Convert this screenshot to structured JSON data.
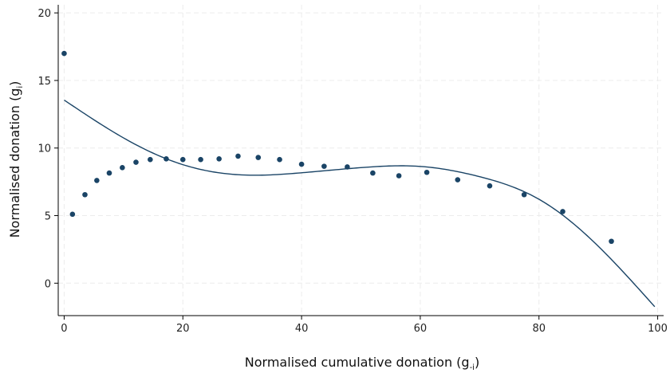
{
  "chart_data": {
    "type": "scatter",
    "xlabel": "Normalised cumulative donation (g",
    "xlabel_sub": "-i",
    "ylabel": "Normalised donation (g",
    "ylabel_sub": "i",
    "label_close": ")",
    "xlim": [
      -1,
      101
    ],
    "ylim": [
      -2.4,
      20.6
    ],
    "xticks": [
      0,
      20,
      40,
      60,
      80,
      100
    ],
    "yticks": [
      0,
      5,
      10,
      15,
      20
    ],
    "grid": true,
    "colors": {
      "series": "#1a4466",
      "grid": "#ececec"
    },
    "series": [
      {
        "type": "scatter",
        "x": [
          0,
          1.4,
          3.5,
          5.5,
          7.6,
          9.8,
          12.1,
          14.5,
          17.2,
          20.0,
          23.0,
          26.1,
          29.3,
          32.7,
          36.3,
          40.0,
          43.8,
          47.7,
          52.0,
          56.4,
          61.1,
          66.3,
          71.7,
          77.5,
          84.0,
          92.2
        ],
        "y": [
          17.0,
          5.1,
          6.55,
          7.6,
          8.15,
          8.55,
          8.95,
          9.15,
          9.2,
          9.15,
          9.15,
          9.2,
          9.4,
          9.3,
          9.15,
          8.8,
          8.65,
          8.6,
          8.15,
          7.95,
          8.2,
          7.65,
          7.2,
          6.55,
          5.3,
          3.1
        ]
      },
      {
        "type": "line",
        "x": [
          0,
          10,
          20,
          30,
          40,
          50,
          60,
          70,
          80,
          90,
          99.5
        ],
        "y": [
          13.55,
          10.75,
          8.77,
          8.01,
          8.17,
          8.55,
          8.64,
          7.88,
          6.21,
          2.73,
          -1.74
        ]
      }
    ]
  }
}
